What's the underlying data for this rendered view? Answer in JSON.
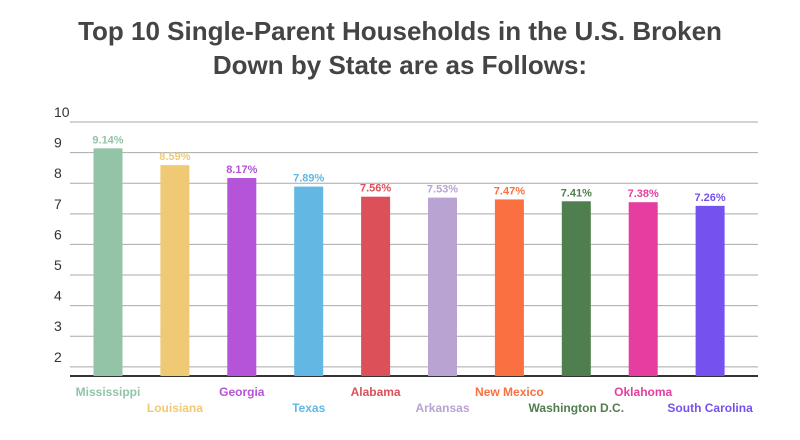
{
  "title": [
    "Top 10 Single-Parent Households in the U.S. Broken",
    "Down by State are as Follows:"
  ],
  "chart_data": {
    "type": "bar",
    "title": "Top 10 Single-Parent Households in the U.S. Broken Down by State are as Follows:",
    "categories": [
      "Mississippi",
      "Louisiana",
      "Georgia",
      "Texas",
      "Alabama",
      "Arkansas",
      "New Mexico",
      "Washington D.C.",
      "Oklahoma",
      "South Carolina"
    ],
    "values": [
      9.14,
      8.59,
      8.17,
      7.89,
      7.56,
      7.53,
      7.47,
      7.41,
      7.38,
      7.26
    ],
    "value_labels": [
      "9.14%",
      "8.59%",
      "8.17%",
      "7.89%",
      "7.56%",
      "7.53%",
      "7.47%",
      "7.41%",
      "7.38%",
      "7.26%"
    ],
    "colors": [
      "#93c4a8",
      "#f0c975",
      "#b553d9",
      "#62b7e3",
      "#dc505a",
      "#b9a3d2",
      "#fa7040",
      "#4f7f4e",
      "#e63da0",
      "#7552ef"
    ],
    "ylim": [
      1.7,
      10
    ],
    "yticks": [
      2,
      3,
      4,
      5,
      6,
      7,
      8,
      9,
      10
    ],
    "grid": true,
    "xlabel": "",
    "ylabel": ""
  }
}
